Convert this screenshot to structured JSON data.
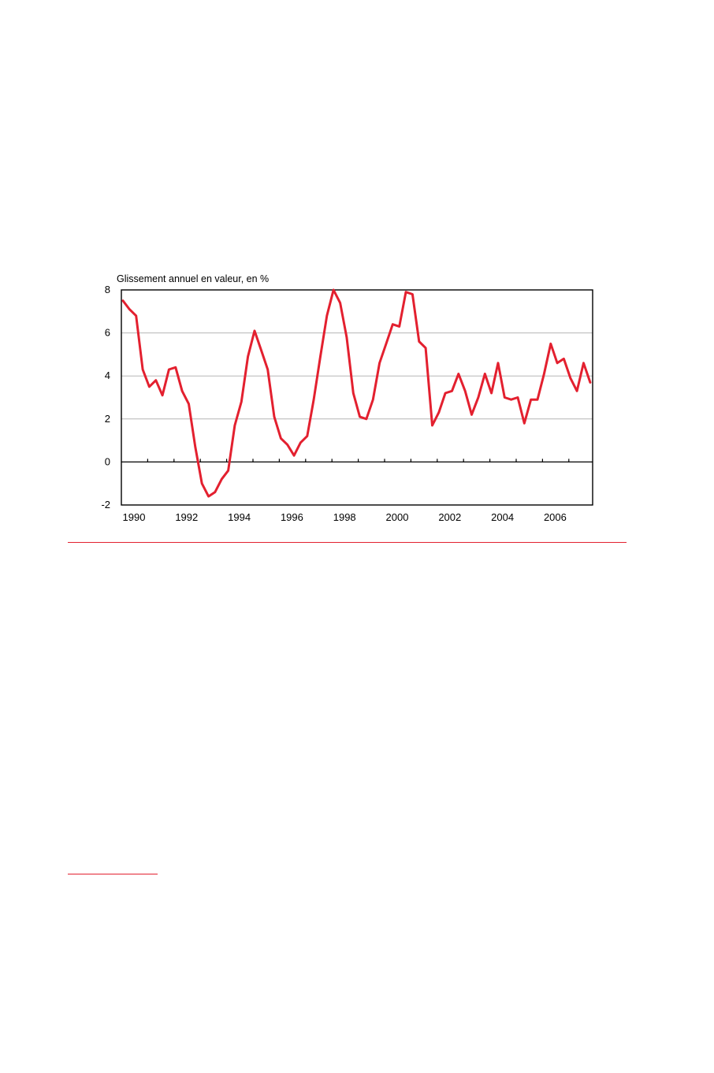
{
  "chart_data": {
    "type": "line",
    "title": "",
    "ylabel": "Glissement annuel en valeur, en %",
    "xlabel": "",
    "ylim": [
      -2,
      8
    ],
    "y_ticks": [
      "8",
      "6",
      "4",
      "2",
      "0",
      "-2"
    ],
    "x_tick_labels": [
      "1990",
      "1992",
      "1994",
      "1996",
      "1998",
      "2000",
      "2002",
      "2004",
      "2006"
    ],
    "grid": "horizontal",
    "legend": "none",
    "line_color": "#e3202f",
    "x_start": "1990-Q1",
    "series": [
      {
        "values": [
          7.5,
          7.1,
          6.8,
          4.3,
          3.5,
          3.8,
          3.1,
          4.3,
          4.4,
          3.3,
          2.7,
          0.7,
          -1.0,
          -1.6,
          -1.4,
          -0.8,
          -0.4,
          1.7,
          2.8,
          4.9,
          6.1,
          5.2,
          4.3,
          2.1,
          1.1,
          0.8,
          0.3,
          0.9,
          1.2,
          2.9,
          4.9,
          6.8,
          8.0,
          7.4,
          5.8,
          3.2,
          2.1,
          2.0,
          2.9,
          4.6,
          5.5,
          6.4,
          6.3,
          7.9,
          7.8,
          5.6,
          5.3,
          1.7,
          2.3,
          3.2,
          3.3,
          4.1,
          3.3,
          2.2,
          3.0,
          4.1,
          3.2,
          4.6,
          3.0,
          2.9,
          3.0,
          1.8,
          2.9,
          2.9,
          4.1,
          5.5,
          4.6,
          4.8,
          3.9,
          3.3,
          4.6,
          3.7
        ]
      }
    ]
  }
}
